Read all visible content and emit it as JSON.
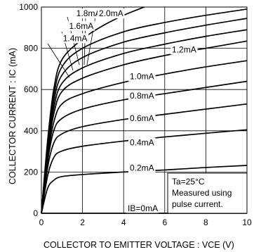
{
  "chart_data": {
    "type": "line",
    "xlabel": "COLLECTOR TO EMITTER VOLTAGE : VCE (V)",
    "ylabel": "COLLECTOR CURRENT : IC (mA)",
    "xlim": [
      0,
      10
    ],
    "ylim": [
      0,
      1000
    ],
    "x_ticks": [
      "0",
      "2",
      "4",
      "6",
      "8",
      "10"
    ],
    "y_ticks": [
      "0",
      "200",
      "400",
      "600",
      "800",
      "1000"
    ],
    "grid": true,
    "notes": [
      "Ta=25°C",
      "Measured using",
      "pulse current."
    ],
    "series": [
      {
        "name": "IB=0mA",
        "x": [
          0,
          10
        ],
        "y": [
          0,
          0
        ]
      },
      {
        "name": "0.2mA",
        "x": [
          0,
          0.3,
          0.6,
          1,
          2,
          4,
          6,
          8,
          10
        ],
        "y": [
          0,
          120,
          160,
          178,
          188,
          200,
          210,
          222,
          232
        ]
      },
      {
        "name": "0.4mA",
        "x": [
          0,
          0.3,
          0.6,
          1,
          2,
          4,
          6,
          8,
          10
        ],
        "y": [
          0,
          180,
          270,
          302,
          325,
          350,
          370,
          388,
          405
        ]
      },
      {
        "name": "0.6mA",
        "x": [
          0,
          0.3,
          0.6,
          1,
          2,
          4,
          6,
          8,
          10
        ],
        "y": [
          0,
          220,
          340,
          385,
          420,
          455,
          480,
          505,
          530
        ]
      },
      {
        "name": "0.8mA",
        "x": [
          0,
          0.3,
          0.6,
          1,
          2,
          4,
          6,
          8,
          10
        ],
        "y": [
          0,
          250,
          400,
          460,
          505,
          550,
          580,
          610,
          640
        ]
      },
      {
        "name": "1.0mA",
        "x": [
          0,
          0.3,
          0.6,
          1,
          2,
          4,
          6,
          8,
          10
        ],
        "y": [
          0,
          270,
          440,
          530,
          580,
          635,
          675,
          710,
          740
        ]
      },
      {
        "name": "1.2mA",
        "x": [
          0,
          0.3,
          0.6,
          1,
          2,
          4,
          6,
          8,
          10
        ],
        "y": [
          0,
          290,
          480,
          590,
          655,
          720,
          765,
          800,
          835
        ]
      },
      {
        "name": "1.4mA",
        "x": [
          0,
          0.3,
          0.6,
          1,
          2,
          4,
          6,
          8,
          10
        ],
        "y": [
          0,
          305,
          510,
          630,
          705,
          775,
          820,
          858,
          890
        ]
      },
      {
        "name": "1.6mA",
        "x": [
          0,
          0.3,
          0.6,
          1,
          2,
          4,
          6,
          8,
          10
        ],
        "y": [
          0,
          320,
          540,
          670,
          755,
          830,
          875,
          912,
          945
        ]
      },
      {
        "name": "1.8mA",
        "x": [
          0,
          0.3,
          0.6,
          1,
          2,
          4,
          6,
          8,
          10
        ],
        "y": [
          0,
          335,
          570,
          710,
          800,
          880,
          925,
          960,
          990
        ]
      },
      {
        "name": "2.0mA",
        "x": [
          0,
          0.3,
          0.6,
          1,
          2,
          3,
          4,
          5
        ],
        "y": [
          0,
          350,
          600,
          745,
          845,
          910,
          960,
          1000
        ]
      }
    ],
    "curve_labels": [
      {
        "text": "1.8mA",
        "vx": 1.7,
        "vy": 955
      },
      {
        "text": "2.0mA",
        "vx": 2.8,
        "vy": 955
      },
      {
        "text": "1.6mA",
        "vx": 1.35,
        "vy": 895
      },
      {
        "text": "1.4mA",
        "vx": 1.05,
        "vy": 835
      },
      {
        "text": "1.2mA",
        "vx": 6.35,
        "vy": 780
      },
      {
        "text": "1.0mA",
        "vx": 4.3,
        "vy": 650
      },
      {
        "text": "0.8mA",
        "vx": 4.3,
        "vy": 557
      },
      {
        "text": "0.6mA",
        "vx": 4.3,
        "vy": 447
      },
      {
        "text": "0.4mA",
        "vx": 4.3,
        "vy": 330
      },
      {
        "text": "0.2mA",
        "vx": 4.3,
        "vy": 207
      },
      {
        "text": "IB=0mA",
        "vx": 4.2,
        "vy": 10
      }
    ]
  }
}
